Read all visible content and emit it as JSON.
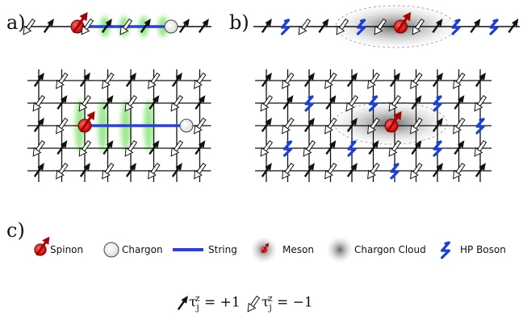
{
  "panels": {
    "a": "a)",
    "b": "b)",
    "c": "c)"
  },
  "legend": {
    "spinon": "Spinon",
    "chargon": "Chargon",
    "string": "String",
    "meson": "Meson",
    "chargon_cloud": "Chargon Cloud",
    "hp_boson": "HP Boson"
  },
  "equations": {
    "up": "τ_j^z = +1",
    "down": "τ_j^z = −1"
  },
  "equation_parts": {
    "tau": "τ",
    "sub": "j",
    "sup": "z",
    "up_value": " = +1",
    "down_value": " = −1"
  },
  "colors": {
    "spinon_fill": "#e11",
    "spinon_arrow": "#a00",
    "chargon_fill": "#ffffff",
    "string": "#2a3fe0",
    "string_glow": "#6bdc55",
    "hp_boson": "#1d3fd6",
    "cloud": "#888888",
    "grid": "#111111"
  },
  "icons": [
    "up-arrow-icon",
    "down-arrow-icon",
    "spinon-icon",
    "chargon-icon",
    "hp-boson-icon"
  ]
}
